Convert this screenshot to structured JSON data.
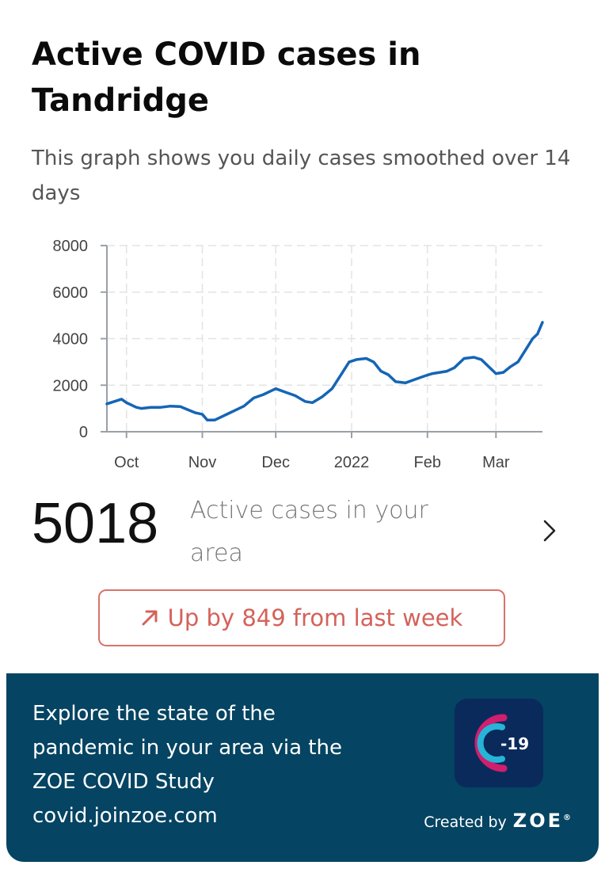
{
  "header": {
    "title": "Active COVID cases in Tandridge",
    "subtitle": "This graph shows you daily cases smoothed over 14 days"
  },
  "chart_data": {
    "type": "line",
    "title": "",
    "xlabel": "",
    "ylabel": "",
    "ylim": [
      0,
      8000
    ],
    "yticks": [
      0,
      2000,
      4000,
      6000,
      8000
    ],
    "ytick_labels": [
      "0",
      "2000",
      "4000",
      "6000",
      "8000"
    ],
    "xticks": [
      {
        "label": "Oct",
        "x": "2021-10-01"
      },
      {
        "label": "Nov",
        "x": "2021-11-01"
      },
      {
        "label": "Dec",
        "x": "2021-12-01"
      },
      {
        "label": "2022",
        "x": "2022-01-01"
      },
      {
        "label": "Feb",
        "x": "2022-02-01"
      },
      {
        "label": "Mar",
        "x": "2022-03-01"
      }
    ],
    "xlim": [
      "2021-09-23",
      "2022-03-20"
    ],
    "grid": true,
    "color": "#1565b5",
    "series": [
      {
        "x": [
          "2021-09-23",
          "2021-09-29",
          "2021-10-01",
          "2021-10-05",
          "2021-10-07",
          "2021-10-11",
          "2021-10-15",
          "2021-10-19",
          "2021-10-23",
          "2021-10-26",
          "2021-10-29",
          "2021-11-01",
          "2021-11-03",
          "2021-11-06",
          "2021-11-08",
          "2021-11-11",
          "2021-11-14",
          "2021-11-18",
          "2021-11-22",
          "2021-11-26",
          "2021-11-28",
          "2021-12-01",
          "2021-12-05",
          "2021-12-09",
          "2021-12-13",
          "2021-12-16",
          "2021-12-20",
          "2021-12-24",
          "2021-12-28",
          "2021-12-31",
          "2022-01-03",
          "2022-01-07",
          "2022-01-10",
          "2022-01-13",
          "2022-01-16",
          "2022-01-19",
          "2022-01-23",
          "2022-01-27",
          "2022-01-31",
          "2022-02-03",
          "2022-02-06",
          "2022-02-09",
          "2022-02-12",
          "2022-02-16",
          "2022-02-20",
          "2022-02-23",
          "2022-02-26",
          "2022-03-01",
          "2022-03-04",
          "2022-03-07",
          "2022-03-10",
          "2022-03-13",
          "2022-03-16",
          "2022-03-18",
          "2022-03-20"
        ],
        "y": [
          1200,
          1400,
          1250,
          1050,
          1000,
          1050,
          1050,
          1100,
          1080,
          950,
          820,
          750,
          500,
          500,
          600,
          750,
          900,
          1100,
          1450,
          1600,
          1700,
          1850,
          1700,
          1550,
          1300,
          1250,
          1500,
          1850,
          2500,
          3000,
          3100,
          3150,
          3000,
          2600,
          2450,
          2150,
          2100,
          2250,
          2400,
          2500,
          2550,
          2600,
          2750,
          3150,
          3200,
          3100,
          2800,
          2500,
          2550,
          2800,
          3000,
          3500,
          4000,
          4200,
          4700
        ]
      }
    ]
  },
  "stats": {
    "active_cases": "5018",
    "active_label": "Active cases in your area",
    "trend_text": "Up by 849 from last week"
  },
  "promo": {
    "line1": "Explore the state of the",
    "line2": "pandemic in your area via the",
    "line3": "ZOE COVID Study",
    "line4": "covid.joinzoe.com",
    "app_icon_text": "-19",
    "created_by": "Created by",
    "brand": "ZOE",
    "brand_mark": "®"
  },
  "colors": {
    "accent_red": "#d4625a",
    "promo_bg": "#054462",
    "line": "#1565b5"
  }
}
